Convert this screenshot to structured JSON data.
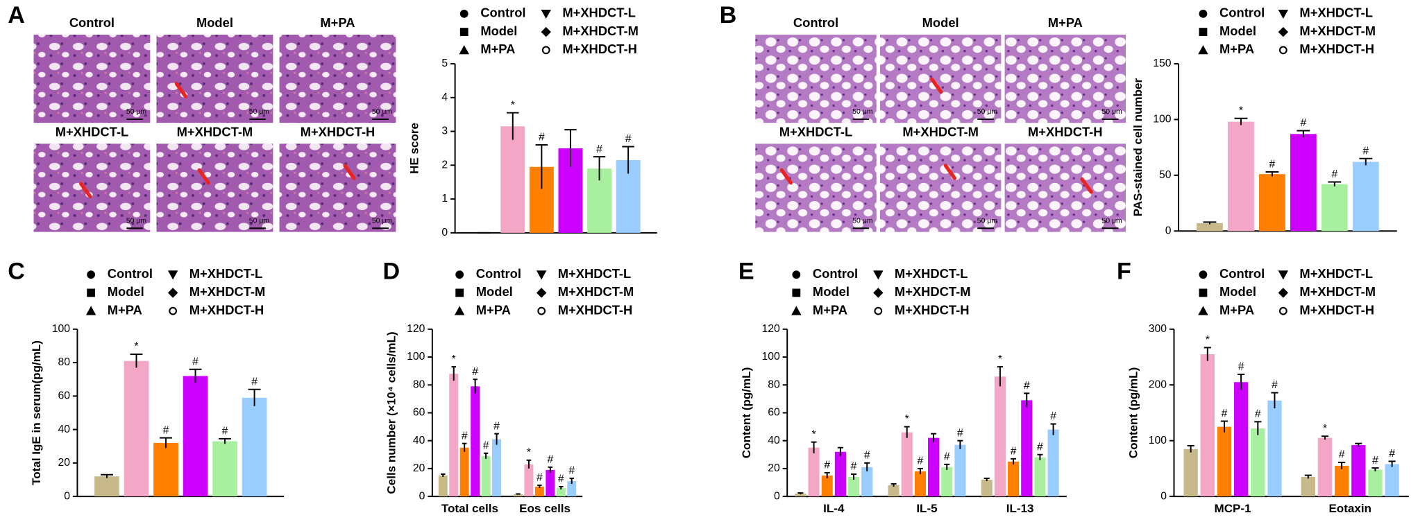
{
  "figure_panels": [
    {
      "label": "A",
      "images": [
        "Control",
        "Model",
        "M+PA",
        "M+XHDCT-L",
        "M+XHDCT-M",
        "M+XHDCT-H"
      ],
      "scale_bar": "50 μm"
    },
    {
      "label": "B",
      "images": [
        "Control",
        "Model",
        "M+PA",
        "M+XHDCT-L",
        "M+XHDCT-M",
        "M+XHDCT-H"
      ],
      "scale_bar": "50 μm"
    }
  ],
  "chart_data": [
    {
      "type": "bar",
      "y_label": "HE score",
      "categories": [
        null
      ],
      "ylim": [
        0,
        5
      ],
      "yticks": [
        0,
        1,
        2,
        3,
        4,
        5
      ],
      "series": [
        {
          "name": "Control",
          "color": "#c8b98a",
          "marker": "circle",
          "values": [
            0
          ],
          "errors": [
            0
          ],
          "sig": [
            null
          ]
        },
        {
          "name": "Model",
          "color": "#f4a6c6",
          "marker": "square",
          "values": [
            3.15
          ],
          "errors": [
            0.4
          ],
          "sig": [
            "*"
          ]
        },
        {
          "name": "M+PA",
          "color": "#ff8000",
          "marker": "triangle",
          "values": [
            1.95
          ],
          "errors": [
            0.65
          ],
          "sig": [
            "#"
          ]
        },
        {
          "name": "M+XHDCT-L",
          "color": "#cc00ff",
          "marker": "triangle-down",
          "values": [
            2.5
          ],
          "errors": [
            0.55
          ],
          "sig": [
            null
          ]
        },
        {
          "name": "M+XHDCT-M",
          "color": "#a8f0a0",
          "marker": "diamond",
          "values": [
            1.9
          ],
          "errors": [
            0.35
          ],
          "sig": [
            "#"
          ]
        },
        {
          "name": "M+XHDCT-H",
          "color": "#99ccff",
          "marker": "open-circle",
          "values": [
            2.15
          ],
          "errors": [
            0.4
          ],
          "sig": [
            "#"
          ]
        }
      ]
    },
    {
      "type": "bar",
      "y_label": "PAS-stained cell number",
      "categories": [
        null
      ],
      "ylim": [
        0,
        150
      ],
      "yticks": [
        0,
        50,
        100,
        150
      ],
      "series": [
        {
          "name": "Control",
          "color": "#c8b98a",
          "marker": "circle",
          "values": [
            7
          ],
          "errors": [
            1
          ],
          "sig": [
            null
          ]
        },
        {
          "name": "Model",
          "color": "#f4a6c6",
          "marker": "square",
          "values": [
            98
          ],
          "errors": [
            3
          ],
          "sig": [
            "*"
          ]
        },
        {
          "name": "M+PA",
          "color": "#ff8000",
          "marker": "triangle",
          "values": [
            51
          ],
          "errors": [
            2
          ],
          "sig": [
            "#"
          ]
        },
        {
          "name": "M+XHDCT-L",
          "color": "#cc00ff",
          "marker": "triangle-down",
          "values": [
            87
          ],
          "errors": [
            3
          ],
          "sig": [
            "#"
          ]
        },
        {
          "name": "M+XHDCT-M",
          "color": "#a8f0a0",
          "marker": "diamond",
          "values": [
            42
          ],
          "errors": [
            2
          ],
          "sig": [
            "#"
          ]
        },
        {
          "name": "M+XHDCT-H",
          "color": "#99ccff",
          "marker": "open-circle",
          "values": [
            62
          ],
          "errors": [
            3
          ],
          "sig": [
            "#"
          ]
        }
      ]
    },
    {
      "type": "bar",
      "panel": "C",
      "y_label": "Total IgE in serum(pg/mL)",
      "categories": [
        null
      ],
      "ylim": [
        0,
        100
      ],
      "yticks": [
        0,
        20,
        40,
        60,
        80,
        100
      ],
      "series": [
        {
          "name": "Control",
          "color": "#c8b98a",
          "marker": "circle",
          "values": [
            12
          ],
          "errors": [
            1
          ],
          "sig": [
            null
          ]
        },
        {
          "name": "Model",
          "color": "#f4a6c6",
          "marker": "square",
          "values": [
            81
          ],
          "errors": [
            4
          ],
          "sig": [
            "*"
          ]
        },
        {
          "name": "M+PA",
          "color": "#ff8000",
          "marker": "triangle",
          "values": [
            32
          ],
          "errors": [
            3
          ],
          "sig": [
            "#"
          ]
        },
        {
          "name": "M+XHDCT-L",
          "color": "#cc00ff",
          "marker": "triangle-down",
          "values": [
            72
          ],
          "errors": [
            4
          ],
          "sig": [
            "#"
          ]
        },
        {
          "name": "M+XHDCT-M",
          "color": "#a8f0a0",
          "marker": "diamond",
          "values": [
            33
          ],
          "errors": [
            1.5
          ],
          "sig": [
            "#"
          ]
        },
        {
          "name": "M+XHDCT-H",
          "color": "#99ccff",
          "marker": "open-circle",
          "values": [
            59
          ],
          "errors": [
            5
          ],
          "sig": [
            "#"
          ]
        }
      ]
    },
    {
      "type": "bar",
      "panel": "D",
      "y_label": "Cells number (×10⁴ cells/mL)",
      "categories": [
        "Total cells",
        "Eos cells"
      ],
      "ylim": [
        0,
        120
      ],
      "yticks": [
        0,
        20,
        40,
        60,
        80,
        100,
        120
      ],
      "series": [
        {
          "name": "Control",
          "color": "#c8b98a",
          "marker": "circle",
          "values": [
            15,
            1.5
          ],
          "errors": [
            1,
            0.3
          ],
          "sig": [
            null,
            null
          ]
        },
        {
          "name": "Model",
          "color": "#f4a6c6",
          "marker": "square",
          "values": [
            88,
            23
          ],
          "errors": [
            5,
            3
          ],
          "sig": [
            "*",
            "*"
          ]
        },
        {
          "name": "M+PA",
          "color": "#ff8000",
          "marker": "triangle",
          "values": [
            35,
            7
          ],
          "errors": [
            3,
            1
          ],
          "sig": [
            "#",
            "#"
          ]
        },
        {
          "name": "M+XHDCT-L",
          "color": "#cc00ff",
          "marker": "triangle-down",
          "values": [
            79,
            19
          ],
          "errors": [
            5,
            2
          ],
          "sig": [
            "#",
            "#"
          ]
        },
        {
          "name": "M+XHDCT-M",
          "color": "#a8f0a0",
          "marker": "diamond",
          "values": [
            29,
            6
          ],
          "errors": [
            2,
            1
          ],
          "sig": [
            "#",
            "#"
          ]
        },
        {
          "name": "M+XHDCT-H",
          "color": "#99ccff",
          "marker": "open-circle",
          "values": [
            41,
            11
          ],
          "errors": [
            4,
            2
          ],
          "sig": [
            "#",
            "#"
          ]
        }
      ]
    },
    {
      "type": "bar",
      "panel": "E",
      "y_label": "Content (pg/mL)",
      "categories": [
        "IL-4",
        "IL-5",
        "IL-13"
      ],
      "ylim": [
        0,
        120
      ],
      "yticks": [
        0,
        20,
        40,
        60,
        80,
        100,
        120
      ],
      "series": [
        {
          "name": "Control",
          "color": "#c8b98a",
          "marker": "circle",
          "values": [
            2,
            8,
            12
          ],
          "errors": [
            0.5,
            1,
            1
          ],
          "sig": [
            null,
            null,
            null
          ]
        },
        {
          "name": "Model",
          "color": "#f4a6c6",
          "marker": "square",
          "values": [
            35,
            46,
            86
          ],
          "errors": [
            4,
            4,
            7
          ],
          "sig": [
            "*",
            "*",
            "*"
          ]
        },
        {
          "name": "M+PA",
          "color": "#ff8000",
          "marker": "triangle",
          "values": [
            15,
            18,
            25
          ],
          "errors": [
            2,
            2,
            2
          ],
          "sig": [
            "#",
            "#",
            "#"
          ]
        },
        {
          "name": "M+XHDCT-L",
          "color": "#cc00ff",
          "marker": "triangle-down",
          "values": [
            32,
            42,
            69
          ],
          "errors": [
            3,
            3,
            5
          ],
          "sig": [
            null,
            null,
            "#"
          ]
        },
        {
          "name": "M+XHDCT-M",
          "color": "#a8f0a0",
          "marker": "diamond",
          "values": [
            14,
            21,
            28
          ],
          "errors": [
            2,
            2,
            2
          ],
          "sig": [
            "#",
            "#",
            "#"
          ]
        },
        {
          "name": "M+XHDCT-H",
          "color": "#99ccff",
          "marker": "open-circle",
          "values": [
            21,
            37,
            48
          ],
          "errors": [
            3,
            3,
            4
          ],
          "sig": [
            "#",
            "#",
            "#"
          ]
        }
      ]
    },
    {
      "type": "bar",
      "panel": "F",
      "y_label": "Content (pg/mL)",
      "categories": [
        "MCP-1",
        "Eotaxin"
      ],
      "ylim": [
        0,
        300
      ],
      "yticks": [
        0,
        100,
        200,
        300
      ],
      "series": [
        {
          "name": "Control",
          "color": "#c8b98a",
          "marker": "circle",
          "values": [
            85,
            35
          ],
          "errors": [
            6,
            3
          ],
          "sig": [
            null,
            null
          ]
        },
        {
          "name": "Model",
          "color": "#f4a6c6",
          "marker": "square",
          "values": [
            255,
            105
          ],
          "errors": [
            12,
            3
          ],
          "sig": [
            "*",
            "*"
          ]
        },
        {
          "name": "M+PA",
          "color": "#ff8000",
          "marker": "triangle",
          "values": [
            125,
            55
          ],
          "errors": [
            10,
            6
          ],
          "sig": [
            "#",
            "#"
          ]
        },
        {
          "name": "M+XHDCT-L",
          "color": "#cc00ff",
          "marker": "triangle-down",
          "values": [
            205,
            92
          ],
          "errors": [
            14,
            3
          ],
          "sig": [
            "#",
            null
          ]
        },
        {
          "name": "M+XHDCT-M",
          "color": "#a8f0a0",
          "marker": "diamond",
          "values": [
            122,
            48
          ],
          "errors": [
            12,
            3
          ],
          "sig": [
            "#",
            "#"
          ]
        },
        {
          "name": "M+XHDCT-H",
          "color": "#99ccff",
          "marker": "open-circle",
          "values": [
            172,
            58
          ],
          "errors": [
            14,
            5
          ],
          "sig": [
            "#",
            "#"
          ]
        }
      ]
    }
  ]
}
